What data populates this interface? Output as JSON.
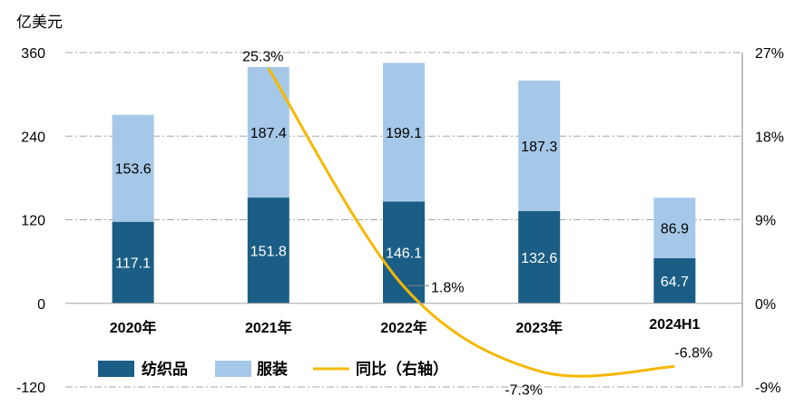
{
  "chart_data": {
    "type": "bar",
    "stacked": true,
    "unit_label": "亿美元",
    "categories": [
      "2020年",
      "2021年",
      "2022年",
      "2023年",
      "2024H1"
    ],
    "series": [
      {
        "name": "纺织品",
        "type": "bar",
        "axis": "left",
        "color": "#1b5e85",
        "values": [
          117.1,
          151.8,
          146.1,
          132.6,
          64.7
        ],
        "labels": [
          "117.1",
          "151.8",
          "146.1",
          "132.6",
          "64.7"
        ]
      },
      {
        "name": "服装",
        "type": "bar",
        "axis": "left",
        "color": "#a6c8e8",
        "values": [
          153.6,
          187.4,
          199.1,
          187.3,
          86.9
        ],
        "labels": [
          "153.6",
          "187.4",
          "199.1",
          "187.3",
          "86.9"
        ]
      },
      {
        "name": "同比（右轴）",
        "type": "line",
        "axis": "right",
        "color": "#f5b800",
        "values": [
          null,
          25.3,
          1.8,
          -7.3,
          -6.8
        ],
        "labels": [
          "",
          "25.3%",
          "1.8%",
          "-7.3%",
          "-6.8%"
        ]
      }
    ],
    "y_left": {
      "ylim": [
        -120,
        360
      ],
      "ticks": [
        "-120",
        "0",
        "120",
        "240",
        "360"
      ]
    },
    "y_right": {
      "ylim": [
        -9,
        27
      ],
      "ticks": [
        "-9%",
        "0%",
        "9%",
        "18%",
        "27%"
      ]
    },
    "grid": true,
    "legend_position": "bottom-inside"
  }
}
